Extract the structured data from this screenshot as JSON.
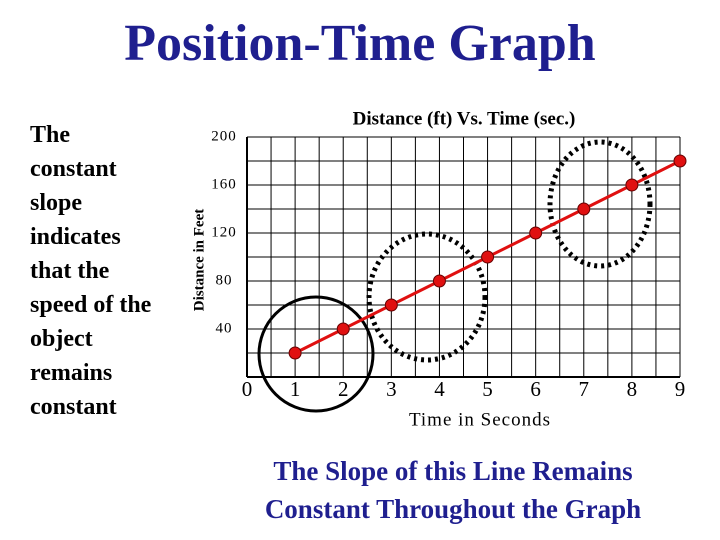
{
  "title": "Position-Time Graph",
  "side_text": [
    "The",
    "constant",
    "slope",
    "indicates",
    "that the",
    "speed of the",
    "object",
    "remains",
    "constant"
  ],
  "caption": [
    "The Slope of this Line Remains",
    "Constant Throughout the Graph"
  ],
  "chart_data": {
    "type": "line",
    "title": "Distance (ft) Vs. Time (sec.)",
    "x_label": "Time in Seconds",
    "y_label": "Distance in Feet",
    "x": [
      1,
      2,
      3,
      4,
      5,
      6,
      7,
      8,
      9
    ],
    "series": [
      {
        "name": "Distance",
        "color": "#e01010",
        "values": [
          20,
          40,
          60,
          80,
          100,
          120,
          140,
          160,
          180
        ]
      }
    ],
    "xlim": [
      0,
      9
    ],
    "ylim": [
      0,
      200
    ],
    "xticks": [
      0,
      1,
      2,
      3,
      4,
      5,
      6,
      7,
      8,
      9
    ],
    "yticks": [
      40,
      80,
      120,
      160,
      200
    ],
    "grid": true
  }
}
